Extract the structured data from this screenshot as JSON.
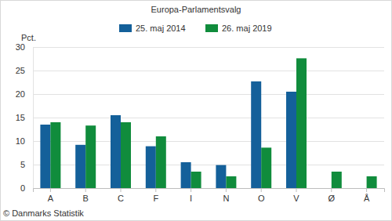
{
  "chart_data": {
    "type": "bar",
    "title": "Europa-Parlamentsvalg",
    "y_label": "Pct.",
    "annotations": [
      "© Danmarks Statistik"
    ],
    "categories": [
      "A",
      "B",
      "C",
      "F",
      "I",
      "N",
      "O",
      "V",
      "Ø",
      "Å"
    ],
    "series": [
      {
        "name": "25. maj 2014",
        "color": "#14609a",
        "values": [
          13.5,
          9.2,
          15.5,
          8.9,
          5.5,
          4.9,
          22.7,
          20.5,
          null,
          null
        ]
      },
      {
        "name": "26. maj 2019",
        "color": "#108c3c",
        "values": [
          14.0,
          13.3,
          14.0,
          11.0,
          3.5,
          2.5,
          8.6,
          27.6,
          3.5,
          2.5
        ]
      }
    ],
    "ylim": [
      0,
      30
    ],
    "yticks": [
      0,
      5,
      10,
      15,
      20,
      25,
      30
    ],
    "grid": true,
    "legend": "top"
  }
}
